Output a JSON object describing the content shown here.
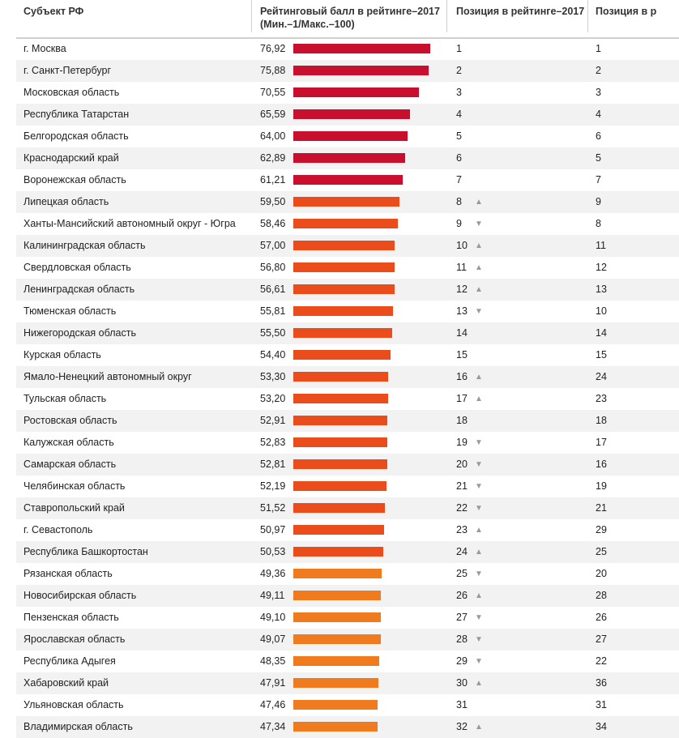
{
  "header": {
    "col_region": "Субъект РФ",
    "col_score_line1": "Рейтинговый балл в рейтинге–2017",
    "col_score_line2": "(Мин.–1/Макс.–100)",
    "col_position": "Позиция в рейтинге–2017",
    "col_prev_position": "Позиция в р"
  },
  "colors": {
    "top_tier": "#c8102e",
    "upper_tier": "#ea4c1c",
    "mid_tier": "#f07a1e",
    "arrow": "#9a9a9a",
    "stripe": "#f2f2f2"
  },
  "chart_data": {
    "type": "bar",
    "orientation": "horizontal",
    "title": "Рейтинговый балл в рейтинге–2017 (Мин.–1/Макс.–100)",
    "xlim": [
      0,
      100
    ],
    "rows": [
      {
        "region": "г. Москва",
        "score": "76,92",
        "value": 76.92,
        "position": "1",
        "trend": "",
        "prev": "1",
        "tier": "top_tier"
      },
      {
        "region": "г. Санкт-Петербург",
        "score": "75,88",
        "value": 75.88,
        "position": "2",
        "trend": "",
        "prev": "2",
        "tier": "top_tier"
      },
      {
        "region": "Московская область",
        "score": "70,55",
        "value": 70.55,
        "position": "3",
        "trend": "",
        "prev": "3",
        "tier": "top_tier"
      },
      {
        "region": "Республика Татарстан",
        "score": "65,59",
        "value": 65.59,
        "position": "4",
        "trend": "",
        "prev": "4",
        "tier": "top_tier"
      },
      {
        "region": "Белгородская область",
        "score": "64,00",
        "value": 64.0,
        "position": "5",
        "trend": "",
        "prev": "6",
        "tier": "top_tier"
      },
      {
        "region": "Краснодарский край",
        "score": "62,89",
        "value": 62.89,
        "position": "6",
        "trend": "",
        "prev": "5",
        "tier": "top_tier"
      },
      {
        "region": "Воронежская область",
        "score": "61,21",
        "value": 61.21,
        "position": "7",
        "trend": "",
        "prev": "7",
        "tier": "top_tier"
      },
      {
        "region": "Липецкая область",
        "score": "59,50",
        "value": 59.5,
        "position": "8",
        "trend": "▲",
        "prev": "9",
        "tier": "upper_tier"
      },
      {
        "region": "Ханты-Мансийский автономный округ - Югра",
        "score": "58,46",
        "value": 58.46,
        "position": "9",
        "trend": "▼",
        "prev": "8",
        "tier": "upper_tier"
      },
      {
        "region": "Калининградская область",
        "score": "57,00",
        "value": 57.0,
        "position": "10",
        "trend": "▲",
        "prev": "11",
        "tier": "upper_tier"
      },
      {
        "region": "Свердловская область",
        "score": "56,80",
        "value": 56.8,
        "position": "11",
        "trend": "▲",
        "prev": "12",
        "tier": "upper_tier"
      },
      {
        "region": "Ленинградская область",
        "score": "56,61",
        "value": 56.61,
        "position": "12",
        "trend": "▲",
        "prev": "13",
        "tier": "upper_tier"
      },
      {
        "region": "Тюменская область",
        "score": "55,81",
        "value": 55.81,
        "position": "13",
        "trend": "▼",
        "prev": "10",
        "tier": "upper_tier"
      },
      {
        "region": "Нижегородская область",
        "score": "55,50",
        "value": 55.5,
        "position": "14",
        "trend": "",
        "prev": "14",
        "tier": "upper_tier"
      },
      {
        "region": "Курская область",
        "score": "54,40",
        "value": 54.4,
        "position": "15",
        "trend": "",
        "prev": "15",
        "tier": "upper_tier"
      },
      {
        "region": "Ямало-Ненецкий автономный округ",
        "score": "53,30",
        "value": 53.3,
        "position": "16",
        "trend": "▲",
        "prev": "24",
        "tier": "upper_tier"
      },
      {
        "region": "Тульская область",
        "score": "53,20",
        "value": 53.2,
        "position": "17",
        "trend": "▲",
        "prev": "23",
        "tier": "upper_tier"
      },
      {
        "region": "Ростовская область",
        "score": "52,91",
        "value": 52.91,
        "position": "18",
        "trend": "",
        "prev": "18",
        "tier": "upper_tier"
      },
      {
        "region": "Калужская область",
        "score": "52,83",
        "value": 52.83,
        "position": "19",
        "trend": "▼",
        "prev": "17",
        "tier": "upper_tier"
      },
      {
        "region": "Самарская область",
        "score": "52,81",
        "value": 52.81,
        "position": "20",
        "trend": "▼",
        "prev": "16",
        "tier": "upper_tier"
      },
      {
        "region": "Челябинская область",
        "score": "52,19",
        "value": 52.19,
        "position": "21",
        "trend": "▼",
        "prev": "19",
        "tier": "upper_tier"
      },
      {
        "region": "Ставропольский край",
        "score": "51,52",
        "value": 51.52,
        "position": "22",
        "trend": "▼",
        "prev": "21",
        "tier": "upper_tier"
      },
      {
        "region": "г. Севастополь",
        "score": "50,97",
        "value": 50.97,
        "position": "23",
        "trend": "▲",
        "prev": "29",
        "tier": "upper_tier"
      },
      {
        "region": "Республика Башкортостан",
        "score": "50,53",
        "value": 50.53,
        "position": "24",
        "trend": "▲",
        "prev": "25",
        "tier": "upper_tier"
      },
      {
        "region": "Рязанская область",
        "score": "49,36",
        "value": 49.36,
        "position": "25",
        "trend": "▼",
        "prev": "20",
        "tier": "mid_tier"
      },
      {
        "region": "Новосибирская область",
        "score": "49,11",
        "value": 49.11,
        "position": "26",
        "trend": "▲",
        "prev": "28",
        "tier": "mid_tier"
      },
      {
        "region": "Пензенская область",
        "score": "49,10",
        "value": 49.1,
        "position": "27",
        "trend": "▼",
        "prev": "26",
        "tier": "mid_tier"
      },
      {
        "region": "Ярославская область",
        "score": "49,07",
        "value": 49.07,
        "position": "28",
        "trend": "▼",
        "prev": "27",
        "tier": "mid_tier"
      },
      {
        "region": "Республика Адыгея",
        "score": "48,35",
        "value": 48.35,
        "position": "29",
        "trend": "▼",
        "prev": "22",
        "tier": "mid_tier"
      },
      {
        "region": "Хабаровский край",
        "score": "47,91",
        "value": 47.91,
        "position": "30",
        "trend": "▲",
        "prev": "36",
        "tier": "mid_tier"
      },
      {
        "region": "Ульяновская область",
        "score": "47,46",
        "value": 47.46,
        "position": "31",
        "trend": "",
        "prev": "31",
        "tier": "mid_tier"
      },
      {
        "region": "Владимирская область",
        "score": "47,34",
        "value": 47.34,
        "position": "32",
        "trend": "▲",
        "prev": "34",
        "tier": "mid_tier"
      }
    ]
  }
}
